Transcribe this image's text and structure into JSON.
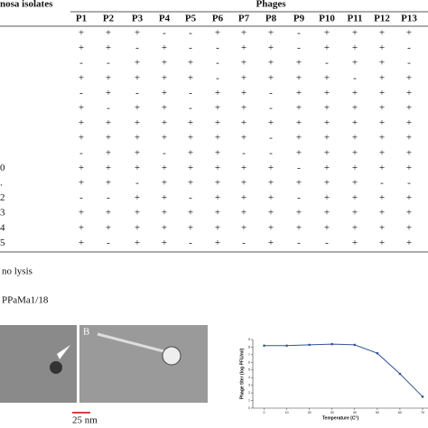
{
  "table": {
    "header": {
      "isolates": "nosa isolates",
      "phages": "Phages",
      "columns": [
        "P1",
        "P2",
        "P3",
        "P4",
        "P5",
        "P6",
        "P7",
        "P8",
        "P9",
        "P10",
        "P11",
        "P12",
        "P13"
      ]
    },
    "rows": [
      {
        "cells": [
          "+",
          "+",
          "+",
          "-",
          "-",
          "+",
          "+",
          "+",
          "-",
          "+",
          "+",
          "+",
          "+"
        ]
      },
      {
        "cells": [
          "+",
          "+",
          "-",
          "+",
          "-",
          "-",
          "+",
          "+",
          "-",
          "+",
          "+",
          "+",
          "-"
        ]
      },
      {
        "cells": [
          "-",
          "-",
          "+",
          "+",
          "+",
          "-",
          "+",
          "+",
          "+",
          "-",
          "+",
          "+",
          "-"
        ]
      },
      {
        "cells": [
          "+",
          "+",
          "+",
          "+",
          "+",
          "-",
          "+",
          "+",
          "+",
          "+",
          "-",
          "+",
          "+"
        ]
      },
      {
        "cells": [
          "-",
          "+",
          "-",
          "+",
          "-",
          "+",
          "+",
          "-",
          "+",
          "+",
          "+",
          "+",
          "+"
        ]
      },
      {
        "cells": [
          "+",
          "-",
          "+",
          "+",
          "-",
          "+",
          "+",
          "-",
          "+",
          "+",
          "+",
          "+",
          "+"
        ]
      },
      {
        "cells": [
          "+",
          "+",
          "+",
          "+",
          "+",
          "+",
          "+",
          "+",
          "+",
          "+",
          "+",
          "+",
          "+"
        ]
      },
      {
        "cells": [
          "+",
          "+",
          "+",
          "+",
          "+",
          "+",
          "+",
          "-",
          "+",
          "+",
          "+",
          "+",
          "+"
        ]
      },
      {
        "cells": [
          "-",
          "+",
          "+",
          "-",
          "+",
          "+",
          "-",
          "-",
          "+",
          "+",
          "+",
          "+",
          "+"
        ]
      },
      {
        "label": "0",
        "cells": [
          "+",
          "+",
          "+",
          "+",
          "+",
          "+",
          "+",
          "+",
          "-",
          "+",
          "+",
          "+",
          "+"
        ]
      },
      {
        "label": ".",
        "cells": [
          "+",
          "+",
          "-",
          "+",
          "+",
          "+",
          "+",
          "+",
          "+",
          "+",
          "+",
          "-",
          "-"
        ]
      },
      {
        "label": "2",
        "cells": [
          "-",
          "-",
          "+",
          "+",
          "-",
          "+",
          "+",
          "+",
          "-",
          "+",
          "+",
          "+",
          "+"
        ]
      },
      {
        "label": "3",
        "cells": [
          "+",
          "+",
          "+",
          "+",
          "+",
          "+",
          "+",
          "+",
          "+",
          "+",
          "+",
          "+",
          "+"
        ]
      },
      {
        "label": "4",
        "cells": [
          "+",
          "+",
          "+",
          "+",
          "+",
          "+",
          "+",
          "+",
          "+",
          "+",
          "+",
          "+",
          "+"
        ]
      },
      {
        "label": "5",
        "cells": [
          "+",
          "-",
          "+",
          "+",
          "-",
          "+",
          "-",
          "+",
          "-",
          "-",
          "+",
          "+",
          "+"
        ]
      }
    ]
  },
  "legend": "no lysis",
  "caption": "PPaMa1/18",
  "figure": {
    "panel_label": "B",
    "scale_bar": "25 nm"
  },
  "chart_data": {
    "type": "line",
    "x_label": "Temperature (C°)",
    "y_label": "Phage titer (log PFU/ml)",
    "x": [
      0,
      10,
      20,
      30,
      40,
      50,
      60,
      70
    ],
    "values": [
      8.2,
      8.2,
      8.3,
      8.4,
      8.3,
      7.2,
      4.5,
      1.5
    ],
    "color": "#2f5597",
    "xlim": [
      -5,
      70
    ],
    "ylim": [
      0,
      9
    ],
    "xticks": [
      0,
      10,
      20,
      30,
      40,
      50,
      60,
      70
    ],
    "yticks": [
      0,
      1,
      2,
      3,
      4,
      5,
      6,
      7,
      8,
      9
    ]
  }
}
